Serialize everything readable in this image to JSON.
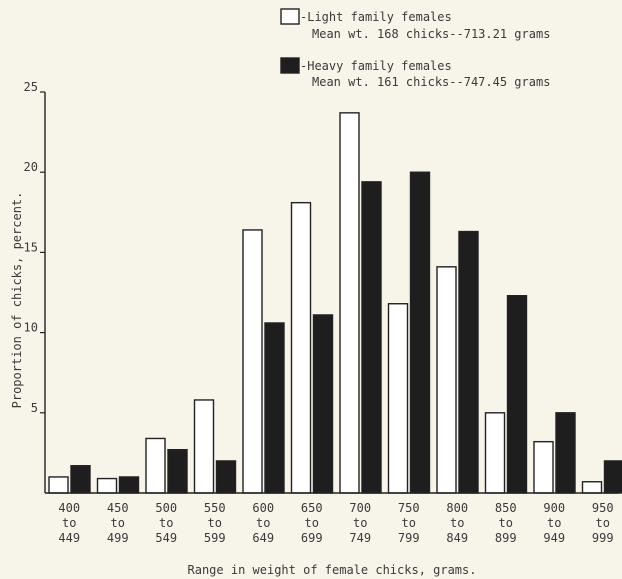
{
  "chart_data": {
    "type": "bar",
    "title": "",
    "xlabel": "Range in weight of female chicks, grams.",
    "ylabel": "Proportion of chicks, percent.",
    "ylim": [
      0,
      25
    ],
    "yticks": [
      5,
      10,
      15,
      20,
      25
    ],
    "categories": [
      [
        "400",
        "to",
        "449"
      ],
      [
        "450",
        "to",
        "499"
      ],
      [
        "500",
        "to",
        "549"
      ],
      [
        "550",
        "to",
        "599"
      ],
      [
        "600",
        "to",
        "649"
      ],
      [
        "650",
        "to",
        "699"
      ],
      [
        "700",
        "to",
        "749"
      ],
      [
        "750",
        "to",
        "799"
      ],
      [
        "800",
        "to",
        "849"
      ],
      [
        "850",
        "to",
        "899"
      ],
      [
        "900",
        "to",
        "949"
      ],
      [
        "950",
        "to",
        "999"
      ]
    ],
    "series": [
      {
        "name": "-Light family females",
        "note": "Mean wt. 168 chicks--713.21 grams",
        "color": "#ffffff",
        "values": [
          1.0,
          0.9,
          3.4,
          5.8,
          16.4,
          18.1,
          23.7,
          11.8,
          14.1,
          5.0,
          3.2,
          0.7
        ]
      },
      {
        "name": "-Heavy family females",
        "note": "Mean wt. 161 chicks--747.45 grams",
        "color": "#1e1e1e",
        "values": [
          1.7,
          1.0,
          2.7,
          2.0,
          10.6,
          11.1,
          19.4,
          20.0,
          16.3,
          12.3,
          5.0,
          2.0
        ]
      }
    ],
    "grid": false,
    "legend_position": "top-right"
  }
}
